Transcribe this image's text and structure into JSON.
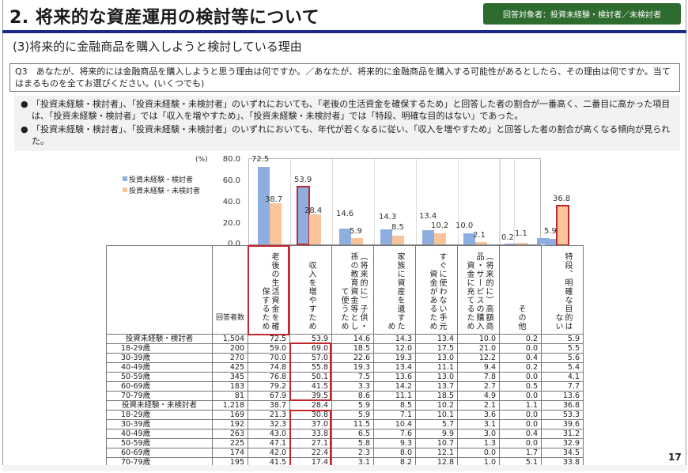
{
  "header": {
    "title": "2. 将来的な資産運用の検討等について",
    "badge": "回答対象者：投資未経験・検討者／未検討者",
    "subtitle": "(3)将来的に金融商品を購入しようと検討している理由"
  },
  "question": {
    "text": "Q3　あなたが、将来的には金融商品を購入しようと思う理由は何ですか。／あなたが、将来的に金融商品を購入する可能性があるとしたら、その理由は何ですか。当てはまるものを全てお選びください。(いくつでも)"
  },
  "notes": [
    {
      "bullet": "●",
      "text": "「投資未経験・検討者」、「投資未経験・未検討者」のいずれにおいても、「老後の生活資金を確保するため」と回答した者の割合が一番高く、二番目に高かった項目は、「投資未経験・検討者」では「収入を増やすため」、「投資未経験・未検討者」では「特段、明確な目的はない」であった。"
    },
    {
      "bullet": "●",
      "text": "「投資未経験・検討者」、「投資未経験・未検討者」のいずれにおいても、年代が若くなるに従い、「収入を増やすため」と回答した者の割合が高くなる傾向が見られた。"
    }
  ],
  "chart_data": {
    "type": "bar",
    "title": "",
    "ylabel": "(%)",
    "ylim": [
      0,
      80
    ],
    "yticks": [
      "80.0",
      "60.0",
      "40.0",
      "20.0",
      "0.0"
    ],
    "grid": "vertical category separators",
    "legend_position": "left",
    "categories": [
      "老後の生活資金を確保するため",
      "収入を増やすため",
      "(将来的に)子供・孫の教育資金等として使うため",
      "家族に資産を遺すため",
      "すぐに使わない手元資金があるため",
      "(将来的に)高額商品・サービスの購入資金に充てるため",
      "その他",
      "特段、明確な目的はない"
    ],
    "series": [
      {
        "name": "投資未経験・検討者",
        "color": "#8eaee0",
        "values": [
          72.5,
          53.9,
          14.6,
          14.3,
          13.4,
          10.0,
          0.2,
          5.9
        ]
      },
      {
        "name": "投資未経験・未検討者",
        "color": "#f9c49a",
        "values": [
          38.7,
          28.4,
          5.9,
          8.5,
          10.2,
          2.1,
          1.1,
          36.8
        ]
      }
    ],
    "highlights": [
      "series0:収入を増やすため",
      "series1:特段、明確な目的はない"
    ]
  },
  "chart_labels": {
    "s1": [
      "72.5",
      "53.9",
      "14.6",
      "14.3",
      "13.4",
      "10.0",
      "0.2",
      "5.9"
    ],
    "s2": [
      "38.7",
      "28.4",
      "5.9",
      "8.5",
      "10.2",
      "2.1",
      "1.1",
      "36.8"
    ]
  },
  "table": {
    "count_header": "回答者数",
    "col_headers": [
      "老後の生活資金を確保するため",
      "収入を増やすため",
      "（将来的に）子供・孫の教育資金等として使うため",
      "家族に資産を遺すため",
      "すぐに使わない手元資金があるため",
      "（将来的に）高額商品・サービスの購入資金に充てるため",
      "その他",
      "特段、明確な目的はない"
    ],
    "groups": [
      {
        "label": "投資未経験・検討者",
        "count": "1,504",
        "values": [
          "72.5",
          "53.9",
          "14.6",
          "14.3",
          "13.4",
          "10.0",
          "0.2",
          "5.9"
        ],
        "rows": [
          {
            "label": "18-29歳",
            "count": "200",
            "values": [
              "59.0",
              "69.0",
              "18.5",
              "12.0",
              "17.5",
              "21.0",
              "0.0",
              "5.5"
            ]
          },
          {
            "label": "30-39歳",
            "count": "270",
            "values": [
              "70.0",
              "57.0",
              "22.6",
              "19.3",
              "13.0",
              "12.2",
              "0.4",
              "5.6"
            ]
          },
          {
            "label": "40-49歳",
            "count": "425",
            "values": [
              "74.8",
              "55.8",
              "19.3",
              "13.4",
              "11.1",
              "9.4",
              "0.2",
              "5.4"
            ]
          },
          {
            "label": "50-59歳",
            "count": "345",
            "values": [
              "76.8",
              "50.1",
              "7.5",
              "13.6",
              "13.0",
              "7.8",
              "0.0",
              "4.1"
            ]
          },
          {
            "label": "60-69歳",
            "count": "183",
            "values": [
              "79.2",
              "41.5",
              "3.3",
              "14.2",
              "13.7",
              "2.7",
              "0.5",
              "7.7"
            ]
          },
          {
            "label": "70-79歳",
            "count": "81",
            "values": [
              "67.9",
              "39.5",
              "8.6",
              "11.1",
              "18.5",
              "4.9",
              "0.0",
              "13.6"
            ]
          }
        ]
      },
      {
        "label": "投資未経験・未検討者",
        "count": "1,218",
        "values": [
          "38.7",
          "28.4",
          "5.9",
          "8.5",
          "10.2",
          "2.1",
          "1.1",
          "36.8"
        ],
        "rows": [
          {
            "label": "18-29歳",
            "count": "169",
            "values": [
              "21.3",
              "30.8",
              "5.9",
              "7.1",
              "10.1",
              "3.6",
              "0.0",
              "53.3"
            ]
          },
          {
            "label": "30-39歳",
            "count": "192",
            "values": [
              "32.3",
              "37.0",
              "11.5",
              "10.4",
              "5.7",
              "3.1",
              "0.0",
              "39.6"
            ]
          },
          {
            "label": "40-49歳",
            "count": "263",
            "values": [
              "43.0",
              "33.8",
              "6.5",
              "7.6",
              "9.9",
              "3.0",
              "0.4",
              "31.2"
            ]
          },
          {
            "label": "50-59歳",
            "count": "225",
            "values": [
              "47.1",
              "27.1",
              "5.8",
              "9.3",
              "10.7",
              "1.3",
              "0.0",
              "32.9"
            ]
          },
          {
            "label": "60-69歳",
            "count": "174",
            "values": [
              "42.0",
              "22.4",
              "2.3",
              "8.0",
              "12.1",
              "0.0",
              "1.7",
              "34.5"
            ]
          },
          {
            "label": "70-79歳",
            "count": "195",
            "values": [
              "41.5",
              "17.4",
              "3.1",
              "8.2",
              "12.8",
              "1.0",
              "5.1",
              "33.8"
            ]
          }
        ]
      }
    ]
  },
  "footer": {
    "page_number": "17"
  }
}
